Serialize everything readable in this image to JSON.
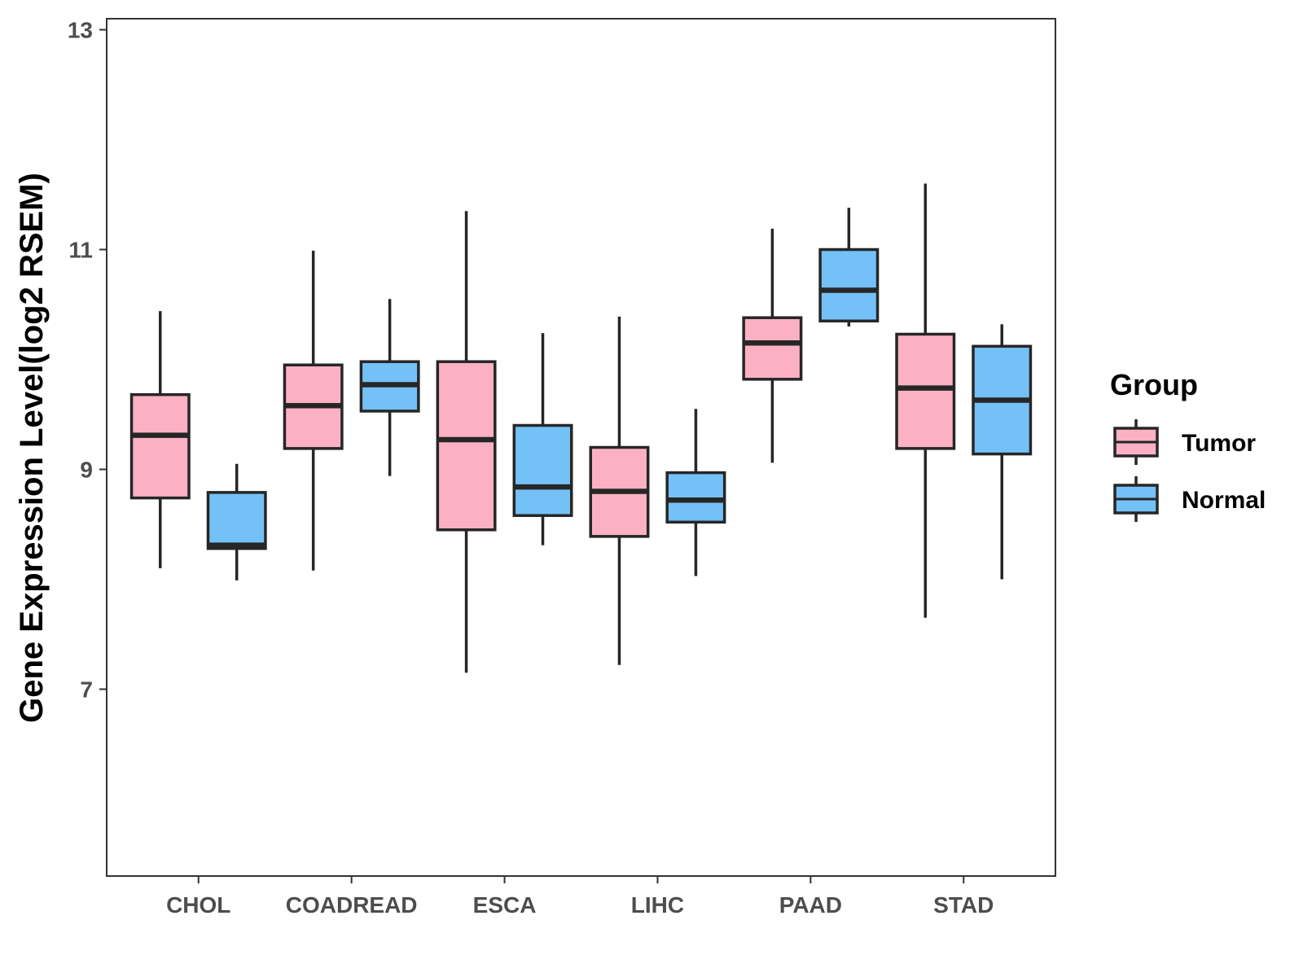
{
  "chart_data": {
    "type": "boxplot",
    "title": "",
    "xlabel": "",
    "ylabel": "Gene Expression Level(log2 RSEM)",
    "ylim": [
      5.3,
      13.1
    ],
    "yticks": [
      7,
      9,
      11,
      13
    ],
    "ytick_labels": [
      "7",
      "9",
      "11",
      "13"
    ],
    "grid": false,
    "legend": {
      "title": "Group",
      "position": "right"
    },
    "categories": [
      "CHOL",
      "COADREAD",
      "ESCA",
      "LIHC",
      "PAAD",
      "STAD"
    ],
    "series": [
      {
        "name": "Tumor",
        "color": "#FBB1C3",
        "boxes": [
          {
            "whisker_low": 8.1,
            "q1": 8.74,
            "median": 9.31,
            "q3": 9.68,
            "whisker_high": 10.44
          },
          {
            "whisker_low": 8.08,
            "q1": 9.19,
            "median": 9.58,
            "q3": 9.95,
            "whisker_high": 10.99
          },
          {
            "whisker_low": 7.15,
            "q1": 8.45,
            "median": 9.27,
            "q3": 9.98,
            "whisker_high": 11.35
          },
          {
            "whisker_low": 7.22,
            "q1": 8.39,
            "median": 8.8,
            "q3": 9.2,
            "whisker_high": 10.39
          },
          {
            "whisker_low": 9.06,
            "q1": 9.82,
            "median": 10.15,
            "q3": 10.38,
            "whisker_high": 11.19
          },
          {
            "whisker_low": 7.65,
            "q1": 9.19,
            "median": 9.74,
            "q3": 10.23,
            "whisker_high": 11.6
          }
        ]
      },
      {
        "name": "Normal",
        "color": "#74C1F8",
        "boxes": [
          {
            "whisker_low": 7.99,
            "q1": 8.28,
            "median": 8.31,
            "q3": 8.79,
            "whisker_high": 9.05
          },
          {
            "whisker_low": 8.94,
            "q1": 9.53,
            "median": 9.77,
            "q3": 9.98,
            "whisker_high": 10.55
          },
          {
            "whisker_low": 8.31,
            "q1": 8.58,
            "median": 8.84,
            "q3": 9.4,
            "whisker_high": 10.24
          },
          {
            "whisker_low": 8.03,
            "q1": 8.52,
            "median": 8.72,
            "q3": 8.97,
            "whisker_high": 9.55
          },
          {
            "whisker_low": 10.3,
            "q1": 10.35,
            "median": 10.63,
            "q3": 11.0,
            "whisker_high": 11.38
          },
          {
            "whisker_low": 8.0,
            "q1": 9.14,
            "median": 9.63,
            "q3": 10.12,
            "whisker_high": 10.32
          }
        ]
      }
    ],
    "colors": {
      "line": "#262626",
      "panel_border": "#333333",
      "tick_text": "#4d4d4d"
    }
  }
}
